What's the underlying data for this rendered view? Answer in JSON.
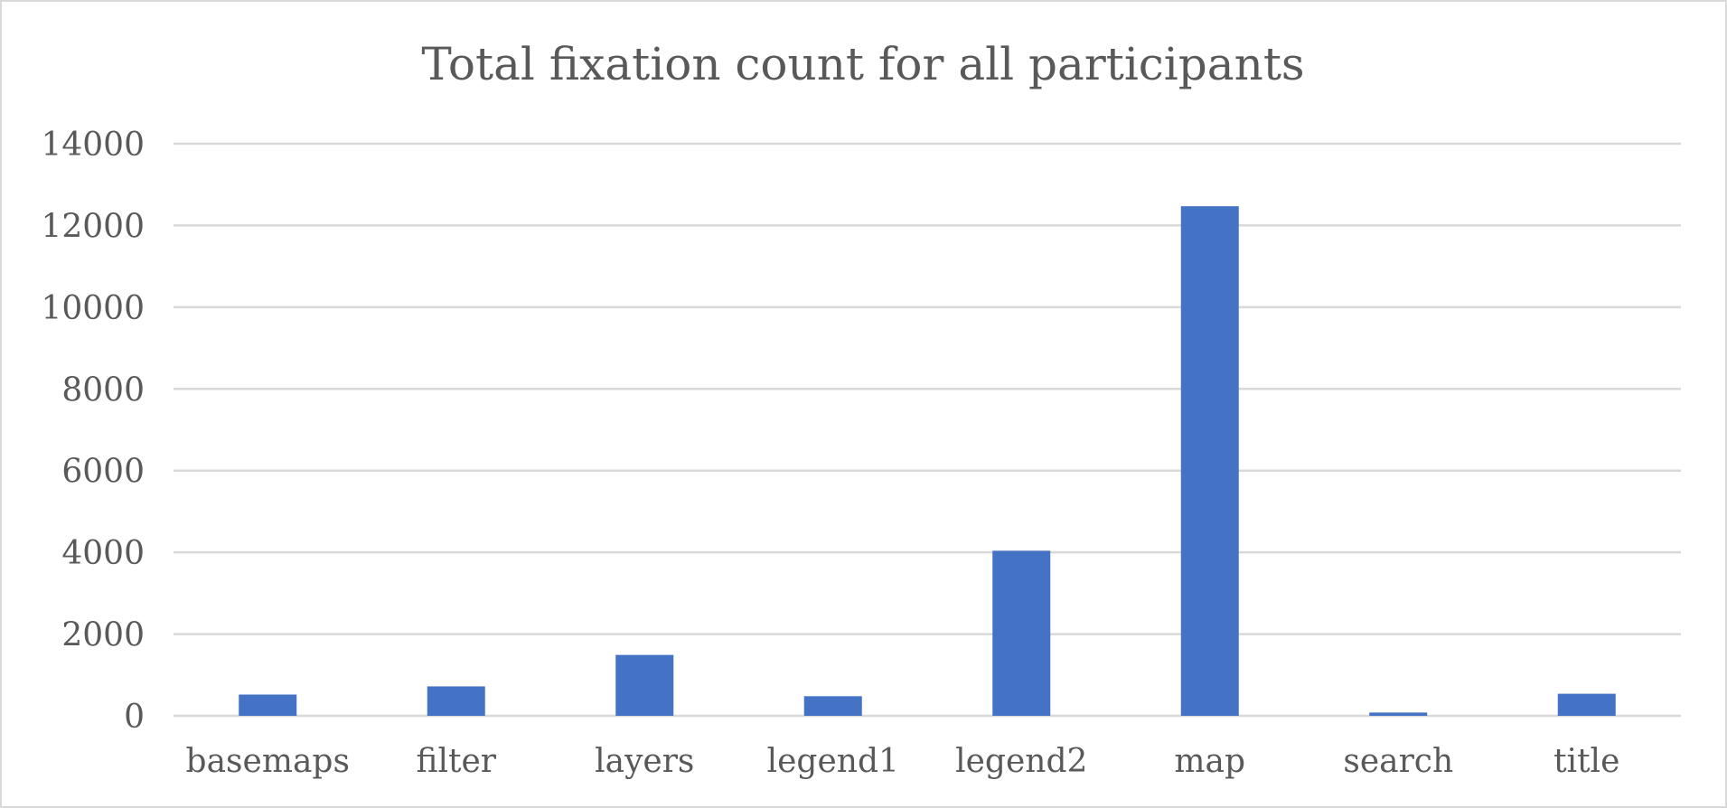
{
  "chart_data": {
    "type": "bar",
    "title": "Total fixation count for all participants",
    "xlabel": "",
    "ylabel": "",
    "categories": [
      "basemaps",
      "filter",
      "layers",
      "legend1",
      "legend2",
      "map",
      "search",
      "title"
    ],
    "series": [
      {
        "values": [
          520,
          720,
          1490,
          480,
          4040,
          12470,
          80,
          540
        ]
      }
    ],
    "ylim": [
      0,
      14000
    ],
    "yticks": [
      "0",
      "2000",
      "4000",
      "6000",
      "8000",
      "10000",
      "12000",
      "14000"
    ],
    "grid": true,
    "legend": "none",
    "colors": {
      "bar": "#4472c4",
      "grid": "#d9d9d9",
      "text": "#595959"
    }
  }
}
